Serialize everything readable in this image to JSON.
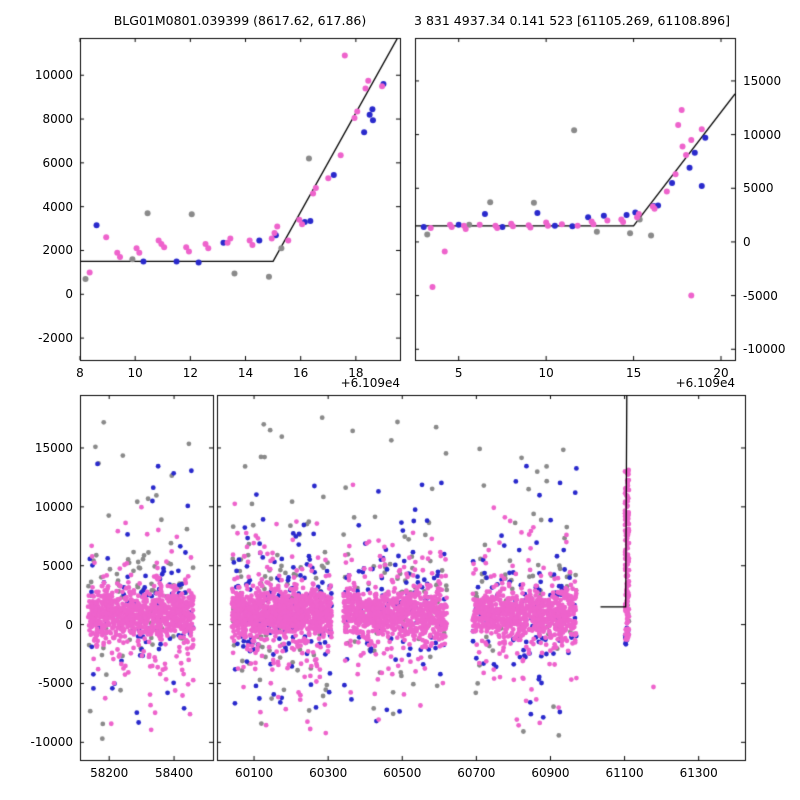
{
  "colors": {
    "pink": "#ee63cc",
    "blue": "#2929cc",
    "gray": "#8a8a8a",
    "model": "#000000"
  },
  "chart_data": [
    {
      "id": "top_left",
      "type": "scatter",
      "title": "BLG01M0801.039399 (8617.62, 617.86)",
      "xlabel": "",
      "ylabel": "",
      "x_offset_label": "+6.109e4",
      "xlim": [
        8,
        19.6
      ],
      "ylim": [
        -3000,
        11700
      ],
      "xticks": [
        8,
        10,
        12,
        14,
        16,
        18
      ],
      "yticks": [
        -2000,
        0,
        2000,
        4000,
        6000,
        8000,
        10000
      ],
      "ytick_side": "left",
      "model_line": [
        [
          8,
          1500
        ],
        [
          15,
          1500
        ],
        [
          19.6,
          11900
        ]
      ],
      "series": [
        {
          "name": "gray",
          "color_key": "gray",
          "points": [
            [
              8.2,
              700
            ],
            [
              9.9,
              1600
            ],
            [
              10.45,
              3700
            ],
            [
              12.05,
              3650
            ],
            [
              13.6,
              950
            ],
            [
              14.85,
              800
            ],
            [
              15.3,
              2100
            ],
            [
              16.3,
              6200
            ]
          ]
        },
        {
          "name": "blue",
          "color_key": "blue",
          "points": [
            [
              8.6,
              3150
            ],
            [
              10.3,
              1500
            ],
            [
              11.5,
              1500
            ],
            [
              12.3,
              1450
            ],
            [
              13.2,
              2350
            ],
            [
              14.5,
              2450
            ],
            [
              15.1,
              2700
            ],
            [
              16.15,
              3300
            ],
            [
              16.35,
              3350
            ],
            [
              17.2,
              5450
            ],
            [
              18.3,
              7400
            ],
            [
              18.5,
              8200
            ],
            [
              18.6,
              8450
            ],
            [
              18.62,
              7950
            ],
            [
              19.0,
              9600
            ]
          ]
        },
        {
          "name": "pink",
          "color_key": "pink",
          "points": [
            [
              8.35,
              1000
            ],
            [
              8.95,
              2600
            ],
            [
              9.35,
              1900
            ],
            [
              9.45,
              1700
            ],
            [
              10.05,
              2100
            ],
            [
              10.15,
              1900
            ],
            [
              10.85,
              2450
            ],
            [
              10.95,
              2300
            ],
            [
              11.05,
              2150
            ],
            [
              11.85,
              2150
            ],
            [
              11.95,
              1950
            ],
            [
              12.55,
              2300
            ],
            [
              12.65,
              2100
            ],
            [
              13.35,
              2350
            ],
            [
              13.45,
              2550
            ],
            [
              14.15,
              2450
            ],
            [
              14.25,
              2250
            ],
            [
              14.95,
              2550
            ],
            [
              15.05,
              2800
            ],
            [
              15.15,
              3100
            ],
            [
              15.55,
              2450
            ],
            [
              15.95,
              3400
            ],
            [
              16.05,
              3200
            ],
            [
              16.45,
              4600
            ],
            [
              16.55,
              4850
            ],
            [
              17.0,
              5300
            ],
            [
              17.45,
              6350
            ],
            [
              17.6,
              10900
            ],
            [
              17.95,
              8050
            ],
            [
              18.05,
              8350
            ],
            [
              18.35,
              9400
            ],
            [
              18.45,
              9750
            ],
            [
              18.95,
              9500
            ]
          ]
        }
      ]
    },
    {
      "id": "top_right",
      "type": "scatter",
      "title": "3 831 4937.34 0.141 523 [61105.269, 61108.896]",
      "xlabel": "",
      "ylabel": "",
      "x_offset_label": "+6.109e4",
      "xlim": [
        2.5,
        20.8
      ],
      "ylim": [
        -11000,
        19000
      ],
      "xticks": [
        5,
        10,
        15,
        20
      ],
      "yticks": [
        -10000,
        -5000,
        0,
        5000,
        10000,
        15000
      ],
      "ytick_side": "right",
      "model_line": [
        [
          2.5,
          1500
        ],
        [
          15,
          1500
        ],
        [
          20.8,
          13800
        ]
      ],
      "series": [
        {
          "name": "gray",
          "color_key": "gray",
          "points": [
            [
              3.2,
              700
            ],
            [
              5.6,
              1600
            ],
            [
              6.8,
              3700
            ],
            [
              9.3,
              3650
            ],
            [
              11.6,
              10400
            ],
            [
              12.9,
              950
            ],
            [
              14.8,
              800
            ],
            [
              15.35,
              2100
            ],
            [
              16.0,
              600
            ]
          ]
        },
        {
          "name": "blue",
          "color_key": "blue",
          "points": [
            [
              3.0,
              1400
            ],
            [
              5.0,
              1600
            ],
            [
              6.5,
              2600
            ],
            [
              7.5,
              1400
            ],
            [
              9.5,
              2700
            ],
            [
              10.5,
              1500
            ],
            [
              11.5,
              1450
            ],
            [
              12.4,
              2300
            ],
            [
              13.3,
              2450
            ],
            [
              14.6,
              2500
            ],
            [
              15.1,
              2750
            ],
            [
              16.15,
              3350
            ],
            [
              16.4,
              3400
            ],
            [
              17.2,
              5500
            ],
            [
              18.2,
              6900
            ],
            [
              18.5,
              8300
            ],
            [
              18.9,
              5200
            ],
            [
              19.1,
              9700
            ]
          ]
        },
        {
          "name": "pink",
          "color_key": "pink",
          "points": [
            [
              3.5,
              -4200
            ],
            [
              4.2,
              -900
            ],
            [
              3.4,
              1300
            ],
            [
              4.5,
              1600
            ],
            [
              4.6,
              1400
            ],
            [
              5.3,
              1500
            ],
            [
              5.4,
              1200
            ],
            [
              6.2,
              1600
            ],
            [
              7.1,
              1500
            ],
            [
              7.2,
              1300
            ],
            [
              8.0,
              1700
            ],
            [
              8.1,
              1450
            ],
            [
              9.0,
              1550
            ],
            [
              9.1,
              1350
            ],
            [
              10.0,
              1800
            ],
            [
              10.1,
              1500
            ],
            [
              10.9,
              1650
            ],
            [
              11.8,
              1500
            ],
            [
              12.6,
              1900
            ],
            [
              12.7,
              1650
            ],
            [
              13.5,
              2000
            ],
            [
              14.3,
              2100
            ],
            [
              14.4,
              1850
            ],
            [
              15.2,
              2300
            ],
            [
              15.3,
              2600
            ],
            [
              16.1,
              3300
            ],
            [
              16.2,
              3100
            ],
            [
              16.9,
              4700
            ],
            [
              17.4,
              6300
            ],
            [
              17.55,
              10900
            ],
            [
              17.75,
              12300
            ],
            [
              17.8,
              8900
            ],
            [
              18.0,
              8100
            ],
            [
              18.3,
              9500
            ],
            [
              18.9,
              10500
            ],
            [
              18.3,
              -5000
            ]
          ]
        }
      ]
    },
    {
      "id": "bottom",
      "type": "scatter",
      "title": "",
      "xlabel": "",
      "ylabel": "",
      "broken_x_axis": true,
      "ylim": [
        -11500,
        19500
      ],
      "yticks": [
        -10000,
        -5000,
        0,
        5000,
        10000,
        15000
      ],
      "panels": [
        {
          "id": "left",
          "xlim": [
            58110,
            58520
          ],
          "xticks": [
            58200,
            58400
          ]
        },
        {
          "id": "right",
          "xlim": [
            60000,
            61425
          ],
          "xticks": [
            60100,
            60300,
            60500,
            60700,
            60900,
            61100,
            61300
          ]
        }
      ],
      "model_line_panel": 1,
      "model_line": [
        [
          61035,
          1500
        ],
        [
          61103,
          1500
        ],
        [
          61106,
          19500
        ]
      ],
      "seed": 42,
      "clusters": [
        {
          "panel": 0,
          "x0": 58135,
          "x1": 58460,
          "groups": [
            {
              "color_key": "gray",
              "n": 70,
              "dist": "normal",
              "mean": 1500,
              "sigma": 3000,
              "clip": [
                -9000,
                17000
              ]
            },
            {
              "color_key": "gray",
              "n": 25,
              "dist": "uniform",
              "lo": -9800,
              "hi": 18800
            },
            {
              "color_key": "blue",
              "n": 75,
              "dist": "normal",
              "mean": 1500,
              "sigma": 2600,
              "clip": [
                -7500,
                13500
              ]
            },
            {
              "color_key": "blue",
              "n": 25,
              "dist": "uniform",
              "lo": -8500,
              "hi": 13800
            },
            {
              "color_key": "pink",
              "n": 170,
              "dist": "normal",
              "mean": 500,
              "sigma": 3500,
              "clip": [
                -9800,
                14000
              ]
            },
            {
              "color_key": "pink",
              "n": 700,
              "dist": "normal",
              "mean": 900,
              "sigma": 1000,
              "clip": [
                -2600,
                4800
              ]
            }
          ]
        },
        {
          "panel": 1,
          "x0": 60040,
          "x1": 60310,
          "groups": [
            {
              "color_key": "gray",
              "n": 85,
              "dist": "normal",
              "mean": 1500,
              "sigma": 3200,
              "clip": [
                -9000,
                17500
              ]
            },
            {
              "color_key": "gray",
              "n": 30,
              "dist": "uniform",
              "lo": -9800,
              "hi": 18800
            },
            {
              "color_key": "blue",
              "n": 100,
              "dist": "normal",
              "mean": 1800,
              "sigma": 2900,
              "clip": [
                -7500,
                13500
              ]
            },
            {
              "color_key": "blue",
              "n": 35,
              "dist": "uniform",
              "lo": -8500,
              "hi": 13800
            },
            {
              "color_key": "pink",
              "n": 210,
              "dist": "normal",
              "mean": 500,
              "sigma": 3500,
              "clip": [
                -9800,
                14000
              ]
            },
            {
              "color_key": "pink",
              "n": 850,
              "dist": "normal",
              "mean": 900,
              "sigma": 1000,
              "clip": [
                -2600,
                4800
              ]
            }
          ]
        },
        {
          "panel": 1,
          "x0": 60340,
          "x1": 60620,
          "groups": [
            {
              "color_key": "gray",
              "n": 65,
              "dist": "normal",
              "mean": 1500,
              "sigma": 3000,
              "clip": [
                -9000,
                17000
              ]
            },
            {
              "color_key": "gray",
              "n": 20,
              "dist": "uniform",
              "lo": -9800,
              "hi": 18500
            },
            {
              "color_key": "blue",
              "n": 80,
              "dist": "normal",
              "mean": 1500,
              "sigma": 2700,
              "clip": [
                -7500,
                13000
              ]
            },
            {
              "color_key": "blue",
              "n": 25,
              "dist": "uniform",
              "lo": -8500,
              "hi": 13500
            },
            {
              "color_key": "pink",
              "n": 170,
              "dist": "normal",
              "mean": 500,
              "sigma": 3400,
              "clip": [
                -9800,
                13500
              ]
            },
            {
              "color_key": "pink",
              "n": 700,
              "dist": "normal",
              "mean": 900,
              "sigma": 1000,
              "clip": [
                -2600,
                4800
              ]
            }
          ]
        },
        {
          "panel": 1,
          "x0": 60690,
          "x1": 60970,
          "groups": [
            {
              "color_key": "gray",
              "n": 65,
              "dist": "normal",
              "mean": 1500,
              "sigma": 3000,
              "clip": [
                -9000,
                16500
              ]
            },
            {
              "color_key": "gray",
              "n": 20,
              "dist": "uniform",
              "lo": -9500,
              "hi": 17500
            },
            {
              "color_key": "blue",
              "n": 85,
              "dist": "normal",
              "mean": 1500,
              "sigma": 2700,
              "clip": [
                -7500,
                13000
              ]
            },
            {
              "color_key": "blue",
              "n": 25,
              "dist": "uniform",
              "lo": -8500,
              "hi": 13500
            },
            {
              "color_key": "pink",
              "n": 160,
              "dist": "normal",
              "mean": 500,
              "sigma": 3400,
              "clip": [
                -9800,
                13500
              ]
            },
            {
              "color_key": "pink",
              "n": 650,
              "dist": "normal",
              "mean": 900,
              "sigma": 1000,
              "clip": [
                -2600,
                4800
              ]
            }
          ]
        },
        {
          "panel": 1,
          "x0": 61101,
          "x1": 61112,
          "groups": [
            {
              "color_key": "gray",
              "n": 4,
              "dist": "uniform",
              "lo": 0,
              "hi": 2500
            },
            {
              "color_key": "blue",
              "n": 12,
              "dist": "uniform",
              "lo": -1900,
              "hi": -200
            },
            {
              "color_key": "pink",
              "n": 150,
              "dist": "uniform",
              "lo": -1300,
              "hi": 13200
            }
          ]
        }
      ],
      "outlier_points": [
        {
          "panel": 1,
          "color_key": "pink",
          "x": 61178,
          "y": -5300
        }
      ]
    }
  ]
}
